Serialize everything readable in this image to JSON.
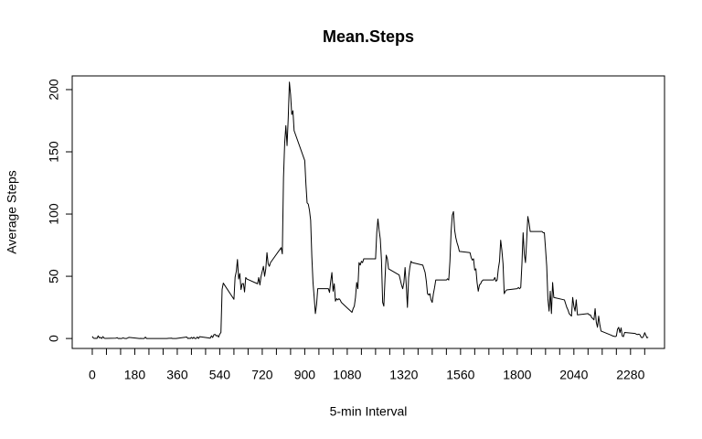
{
  "chart_data": {
    "type": "line",
    "title": "Mean.Steps",
    "x_label": "5-min Interval",
    "y_label": "Average Steps",
    "xlim": [
      -85,
      2424
    ],
    "ylim": [
      -8,
      211
    ],
    "xticks": [
      0,
      180,
      360,
      540,
      720,
      900,
      1080,
      1320,
      1560,
      1800,
      2040,
      2280
    ],
    "xminorticks": [
      60,
      120,
      240,
      300,
      420,
      480,
      600,
      660,
      780,
      840,
      960,
      1020,
      1140,
      1200,
      1260,
      1380,
      1440,
      1500,
      1620,
      1680,
      1740,
      1860,
      1920,
      1980,
      2100,
      2160,
      2220,
      2340
    ],
    "yticks": [
      0,
      50,
      100,
      150,
      200
    ],
    "color": "#000000",
    "x": [
      0,
      5,
      10,
      15,
      20,
      25,
      30,
      35,
      40,
      45,
      50,
      55,
      100,
      105,
      110,
      115,
      120,
      125,
      130,
      135,
      140,
      145,
      150,
      155,
      200,
      205,
      210,
      215,
      220,
      225,
      230,
      235,
      240,
      245,
      250,
      255,
      300,
      305,
      310,
      315,
      320,
      325,
      330,
      335,
      340,
      345,
      350,
      355,
      400,
      405,
      410,
      415,
      420,
      425,
      430,
      435,
      440,
      445,
      450,
      455,
      500,
      505,
      510,
      515,
      520,
      525,
      530,
      535,
      540,
      545,
      550,
      555,
      600,
      605,
      610,
      615,
      620,
      625,
      630,
      635,
      640,
      645,
      650,
      655,
      700,
      705,
      710,
      715,
      720,
      725,
      730,
      735,
      740,
      745,
      750,
      755,
      800,
      805,
      810,
      815,
      820,
      825,
      830,
      835,
      840,
      845,
      850,
      855,
      900,
      905,
      910,
      915,
      920,
      925,
      930,
      935,
      940,
      945,
      950,
      955,
      1000,
      1005,
      1010,
      1015,
      1020,
      1025,
      1030,
      1035,
      1040,
      1045,
      1050,
      1055,
      1100,
      1105,
      1110,
      1115,
      1120,
      1125,
      1130,
      1135,
      1140,
      1145,
      1150,
      1155,
      1200,
      1205,
      1210,
      1215,
      1220,
      1225,
      1230,
      1235,
      1240,
      1245,
      1250,
      1255,
      1300,
      1305,
      1310,
      1315,
      1320,
      1325,
      1330,
      1335,
      1340,
      1345,
      1350,
      1355,
      1400,
      1405,
      1410,
      1415,
      1420,
      1425,
      1430,
      1435,
      1440,
      1445,
      1450,
      1455,
      1500,
      1505,
      1510,
      1515,
      1520,
      1525,
      1530,
      1535,
      1540,
      1545,
      1550,
      1555,
      1600,
      1605,
      1610,
      1615,
      1620,
      1625,
      1630,
      1635,
      1640,
      1645,
      1650,
      1655,
      1700,
      1705,
      1710,
      1715,
      1720,
      1725,
      1730,
      1735,
      1740,
      1745,
      1750,
      1755,
      1800,
      1805,
      1810,
      1815,
      1820,
      1825,
      1830,
      1835,
      1840,
      1845,
      1850,
      1855,
      1900,
      1905,
      1910,
      1915,
      1920,
      1925,
      1930,
      1935,
      1940,
      1945,
      1950,
      1955,
      2000,
      2005,
      2010,
      2015,
      2020,
      2025,
      2030,
      2035,
      2040,
      2045,
      2050,
      2055,
      2100,
      2105,
      2110,
      2115,
      2120,
      2125,
      2130,
      2135,
      2140,
      2145,
      2150,
      2155,
      2200,
      2205,
      2210,
      2215,
      2220,
      2225,
      2230,
      2235,
      2240,
      2245,
      2250,
      2255,
      2300,
      2305,
      2310,
      2315,
      2320,
      2325,
      2330,
      2335,
      2340,
      2345,
      2350,
      2355
    ],
    "values": [
      1.7,
      0.3,
      0.1,
      0.2,
      0.1,
      2.1,
      0.5,
      0.9,
      0,
      1.5,
      0.3,
      0.1,
      0.3,
      0.7,
      0,
      0.1,
      0,
      0,
      0.5,
      0.2,
      0,
      0,
      0.4,
      0.9,
      0,
      0.1,
      0,
      0,
      0,
      1.1,
      0,
      0,
      0,
      0,
      0,
      0,
      0,
      0,
      0,
      0,
      0.1,
      0.2,
      0.2,
      0.3,
      0,
      0,
      0,
      0,
      1.2,
      0,
      0.3,
      0,
      0.9,
      0,
      1.0,
      0,
      0,
      1.2,
      0,
      1.5,
      0.3,
      2.2,
      0.8,
      3.0,
      3.3,
      2.1,
      2.5,
      1.1,
      3.5,
      4.9,
      39.5,
      44.5,
      31.5,
      49.3,
      53.8,
      63.5,
      47.8,
      52.2,
      39.3,
      44.0,
      44.2,
      37.4,
      49.0,
      47.8,
      44,
      49,
      43,
      50,
      54,
      58,
      50,
      56,
      69,
      60,
      58,
      61,
      73,
      68,
      129,
      157,
      171,
      155,
      177,
      206,
      196,
      180,
      183,
      167,
      143,
      124,
      109,
      108,
      103,
      95,
      66,
      45,
      33,
      20,
      27,
      40,
      40,
      37,
      46,
      53,
      38,
      44,
      30,
      32,
      31,
      32,
      31,
      29,
      21,
      24,
      26,
      33,
      45,
      40,
      61,
      59,
      62,
      61,
      64,
      64,
      64,
      85,
      96,
      87,
      80,
      63,
      29,
      26,
      48,
      67,
      64,
      56,
      51,
      47,
      43,
      40,
      45,
      57,
      43,
      25,
      49,
      57,
      62,
      61,
      59,
      56,
      53,
      46,
      36,
      35,
      36,
      31,
      29,
      36,
      41,
      47,
      47,
      48,
      47,
      62,
      86,
      99,
      102,
      87,
      81,
      77,
      74,
      70,
      69,
      65,
      63,
      64,
      55,
      56,
      45,
      38,
      43,
      44,
      46,
      47,
      47,
      49,
      46,
      47,
      56,
      62,
      79,
      71,
      60,
      36,
      38,
      39,
      40,
      41,
      40,
      41,
      60,
      85,
      68,
      61,
      79,
      98,
      93,
      86,
      86,
      86,
      85,
      85,
      72,
      58,
      32,
      22,
      38,
      20,
      45,
      33,
      31,
      28,
      25,
      23,
      20,
      19,
      18,
      33,
      26,
      22,
      31,
      19,
      20,
      19,
      19,
      17,
      16,
      15,
      24,
      13,
      9,
      18,
      11,
      6,
      2.5,
      2.0,
      1.8,
      1.5,
      2.0,
      7.5,
      9.0,
      4.7,
      8.5,
      2.0,
      1.5,
      4.9,
      4.0,
      3.4,
      3.2,
      3.5,
      3.0,
      1.0,
      0.6,
      1.8,
      4.7,
      2.5,
      0.5,
      1.1
    ]
  }
}
